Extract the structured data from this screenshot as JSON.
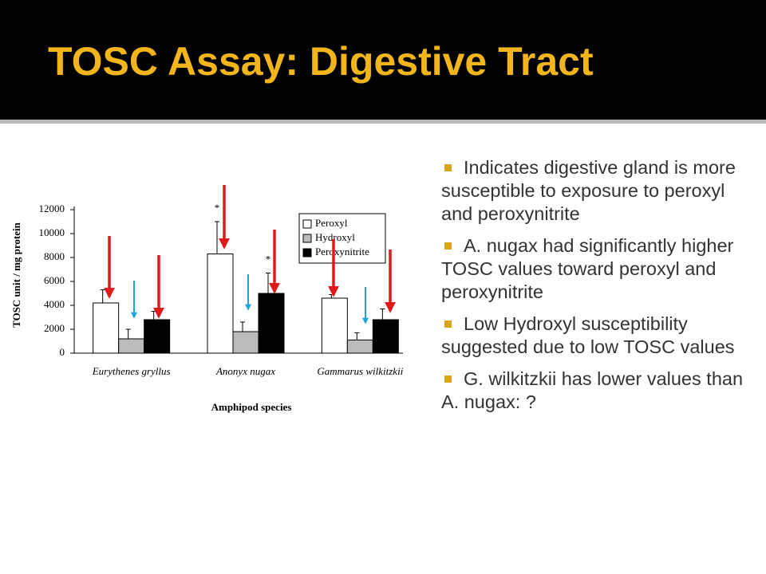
{
  "title": "TOSC Assay: Digestive Tract",
  "bullets": [
    "Indicates digestive gland is more susceptible to exposure to peroxyl and peroxynitrite",
    "A. nugax had significantly higher TOSC values toward peroxyl and peroxynitrite",
    "Low Hydroxyl susceptibility suggested due to low TOSC values",
    "G. wilkitzkii has lower values than A. nugax:  ?"
  ],
  "chart_data": {
    "type": "bar",
    "y_label": "TOSC unit / mg protein",
    "x_label": "Amphipod species",
    "categories": [
      "Eurythenes gryllus",
      "Anonyx nugax",
      "Gammarus wilkitzkii"
    ],
    "series": [
      {
        "name": "Peroxyl",
        "color": "#ffffff",
        "values": [
          4200,
          8300,
          4600
        ],
        "errors": [
          1100,
          2700,
          300
        ]
      },
      {
        "name": "Hydroxyl",
        "color": "#bbbbbb",
        "values": [
          1200,
          1800,
          1100
        ],
        "errors": [
          800,
          800,
          600
        ]
      },
      {
        "name": "Peroxynitrite",
        "color": "#000000",
        "values": [
          2800,
          5000,
          2800
        ],
        "errors": [
          700,
          1700,
          900
        ]
      }
    ],
    "annotations": [
      "*",
      "*"
    ],
    "ylim": [
      0,
      12000
    ],
    "yticks": [
      0,
      2000,
      4000,
      6000,
      8000,
      10000,
      12000
    ]
  }
}
